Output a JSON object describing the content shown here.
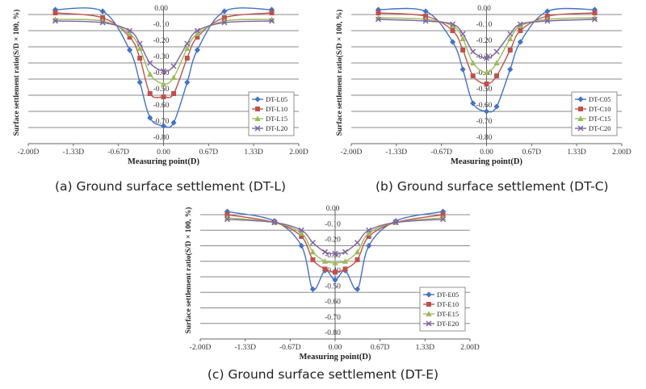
{
  "captions": [
    "(a) Ground surface settlement (DT-L)",
    "(b) Ground surface settlement (DT-C)",
    "(c) Ground surface settlement (DT-E)"
  ],
  "colors": {
    "series": [
      "#4472C4",
      "#C0504D",
      "#9BBB59",
      "#8064A2"
    ],
    "grid": "#888888",
    "axis": "#666666"
  },
  "chart_data": [
    {
      "type": "line",
      "xlabel": "Measuring point(D)",
      "ylabel": "Surface settlement ratio(S/D × 100,  %)",
      "xlim": [
        -2.0,
        2.0
      ],
      "ylim": [
        -0.8,
        0.0
      ],
      "x_ticks": [
        "-2.00D",
        "-1.33D",
        "-0.67D",
        "0.00",
        "0.67D",
        "1.33D",
        "2.00D"
      ],
      "y_ticks": [
        "0.00",
        "-0.10",
        "-0.20",
        "-0.30",
        "-0.40",
        "-0.50",
        "-0.60",
        "-0.70",
        "-0.80"
      ],
      "grid": true,
      "legend": "bottom-right",
      "series": [
        {
          "name": "DT-L05",
          "marker": "diamond",
          "x": [
            -1.6,
            -0.9,
            -0.5,
            -0.35,
            -0.2,
            0.0,
            0.15,
            0.35,
            0.5,
            0.9,
            1.6
          ],
          "y": [
            0.03,
            0.02,
            -0.22,
            -0.42,
            -0.64,
            -0.69,
            -0.67,
            -0.42,
            -0.22,
            0.02,
            0.03
          ]
        },
        {
          "name": "DT-L10",
          "marker": "square",
          "x": [
            -1.6,
            -0.9,
            -0.5,
            -0.35,
            -0.2,
            0.0,
            0.15,
            0.35,
            0.5,
            0.9,
            1.6
          ],
          "y": [
            0.01,
            -0.02,
            -0.14,
            -0.27,
            -0.49,
            -0.51,
            -0.49,
            -0.27,
            -0.14,
            -0.02,
            0.01
          ]
        },
        {
          "name": "DT-L15",
          "marker": "triangle",
          "x": [
            -1.6,
            -0.9,
            -0.5,
            -0.35,
            -0.2,
            0.0,
            0.15,
            0.35,
            0.5,
            0.9,
            1.6
          ],
          "y": [
            -0.03,
            -0.04,
            -0.12,
            -0.21,
            -0.37,
            -0.43,
            -0.39,
            -0.21,
            -0.12,
            -0.04,
            -0.03
          ]
        },
        {
          "name": "DT-L20",
          "marker": "x",
          "x": [
            -1.6,
            -0.9,
            -0.5,
            -0.35,
            -0.2,
            0.0,
            0.15,
            0.35,
            0.5,
            0.9,
            1.6
          ],
          "y": [
            -0.04,
            -0.05,
            -0.1,
            -0.18,
            -0.3,
            -0.35,
            -0.32,
            -0.18,
            -0.1,
            -0.05,
            -0.04
          ]
        }
      ]
    },
    {
      "type": "line",
      "xlabel": "Measuring point(D)",
      "ylabel": "Surface settlement ratio(S/D × 100,  %)",
      "xlim": [
        -2.0,
        2.0
      ],
      "ylim": [
        -0.8,
        0.0
      ],
      "x_ticks": [
        "-2.00D",
        "-1.33D",
        "-0.67D",
        "0.00",
        "0.67D",
        "1.33D",
        "2.00D"
      ],
      "y_ticks": [
        "0.00",
        "-0.10",
        "-0.20",
        "-0.30",
        "-0.40",
        "-0.50",
        "-0.60",
        "-0.70",
        "-0.80"
      ],
      "grid": true,
      "legend": "bottom-right",
      "series": [
        {
          "name": "DT-C05",
          "marker": "diamond",
          "x": [
            -1.6,
            -0.9,
            -0.5,
            -0.35,
            -0.2,
            0.0,
            0.15,
            0.35,
            0.5,
            0.9,
            1.6
          ],
          "y": [
            0.03,
            0.02,
            -0.17,
            -0.34,
            -0.55,
            -0.6,
            -0.57,
            -0.34,
            -0.17,
            0.02,
            0.03
          ]
        },
        {
          "name": "DT-C10",
          "marker": "square",
          "x": [
            -1.6,
            -0.9,
            -0.5,
            -0.35,
            -0.2,
            0.0,
            0.15,
            0.35,
            0.5,
            0.9,
            1.6
          ],
          "y": [
            0.01,
            -0.01,
            -0.1,
            -0.22,
            -0.38,
            -0.43,
            -0.38,
            -0.22,
            -0.1,
            -0.01,
            0.01
          ]
        },
        {
          "name": "DT-C15",
          "marker": "triangle",
          "x": [
            -1.6,
            -0.9,
            -0.5,
            -0.35,
            -0.2,
            0.0,
            0.15,
            0.35,
            0.5,
            0.9,
            1.6
          ],
          "y": [
            -0.02,
            -0.03,
            -0.07,
            -0.15,
            -0.3,
            -0.36,
            -0.3,
            -0.15,
            -0.07,
            -0.03,
            -0.02
          ]
        },
        {
          "name": "DT-C20",
          "marker": "x",
          "x": [
            -1.6,
            -0.9,
            -0.5,
            -0.35,
            -0.2,
            0.0,
            0.15,
            0.35,
            0.5,
            0.9,
            1.6
          ],
          "y": [
            -0.03,
            -0.04,
            -0.06,
            -0.12,
            -0.23,
            -0.27,
            -0.23,
            -0.12,
            -0.06,
            -0.04,
            -0.03
          ]
        }
      ]
    },
    {
      "type": "line",
      "xlabel": "Measuring point(D)",
      "ylabel": "Surface settlement ratio(S/D × 100,  %)",
      "xlim": [
        -2.0,
        2.0
      ],
      "ylim": [
        -0.8,
        0.0
      ],
      "x_ticks": [
        "-2.00D",
        "-1.33D",
        "-0.67D",
        "0.00",
        "0.67D",
        "1.33D",
        "2.00D"
      ],
      "y_ticks": [
        "0.00",
        "-0.10",
        "-0.20",
        "-0.30",
        "-0.40",
        "-0.50",
        "-0.60",
        "-0.70",
        "-0.80"
      ],
      "grid": true,
      "legend": "bottom-right",
      "series": [
        {
          "name": "DT-E05",
          "marker": "diamond",
          "x": [
            -1.6,
            -0.9,
            -0.5,
            -0.33,
            -0.15,
            0.0,
            0.15,
            0.33,
            0.5,
            0.9,
            1.6
          ],
          "y": [
            0.02,
            -0.04,
            -0.2,
            -0.48,
            -0.36,
            -0.42,
            -0.36,
            -0.48,
            -0.2,
            -0.04,
            0.02
          ]
        },
        {
          "name": "DT-E10",
          "marker": "square",
          "x": [
            -1.6,
            -0.9,
            -0.5,
            -0.33,
            -0.15,
            0.0,
            0.15,
            0.33,
            0.5,
            0.9,
            1.6
          ],
          "y": [
            0.0,
            -0.05,
            -0.14,
            -0.29,
            -0.35,
            -0.37,
            -0.35,
            -0.29,
            -0.14,
            -0.05,
            0.0
          ]
        },
        {
          "name": "DT-E15",
          "marker": "triangle",
          "x": [
            -1.6,
            -0.9,
            -0.5,
            -0.33,
            -0.15,
            0.0,
            0.15,
            0.33,
            0.5,
            0.9,
            1.6
          ],
          "y": [
            -0.02,
            -0.05,
            -0.12,
            -0.24,
            -0.3,
            -0.31,
            -0.3,
            -0.24,
            -0.12,
            -0.05,
            -0.02
          ]
        },
        {
          "name": "DT-E20",
          "marker": "x",
          "x": [
            -1.6,
            -0.9,
            -0.5,
            -0.33,
            -0.15,
            0.0,
            0.15,
            0.33,
            0.5,
            0.9,
            1.6
          ],
          "y": [
            -0.03,
            -0.05,
            -0.1,
            -0.18,
            -0.24,
            -0.25,
            -0.24,
            -0.18,
            -0.1,
            -0.05,
            -0.03
          ]
        }
      ]
    }
  ]
}
